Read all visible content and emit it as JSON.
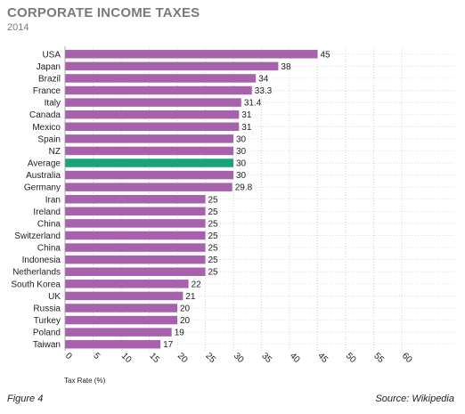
{
  "figure_label": "Figure 4",
  "source": "Source: Wikipedia",
  "chart_data": {
    "type": "bar",
    "orientation": "horizontal",
    "title": "CORPORATE INCOME TAXES",
    "subtitle": "2014",
    "xlabel": "Tax Rate (%)",
    "ylabel": "",
    "xlim": [
      0,
      60
    ],
    "xticks": [
      "0",
      "5",
      "10",
      "15",
      "20",
      "25",
      "30",
      "35",
      "40",
      "45",
      "50",
      "55",
      "60"
    ],
    "grid": true,
    "colors": {
      "default": "#a862ad",
      "highlight": "#1aa37a"
    },
    "highlight_category": "Average",
    "categories": [
      "USA",
      "Japan",
      "Brazil",
      "France",
      "Italy",
      "Canada",
      "Mexico",
      "Spain",
      "NZ",
      "Average",
      "Australia",
      "Germany",
      "Iran",
      "Ireland",
      "China",
      "Switzerland",
      "China",
      "Indonesia",
      "Netherlands",
      "South Korea",
      "UK",
      "Russia",
      "Turkey",
      "Poland",
      "Taiwan"
    ],
    "values": [
      45,
      38,
      34,
      33.3,
      31.4,
      31,
      31,
      30,
      30,
      30,
      30,
      29.8,
      25,
      25,
      25,
      25,
      25,
      25,
      25,
      22,
      21,
      20,
      20,
      19,
      17
    ],
    "value_labels": [
      "45",
      "38",
      "34",
      "33.3",
      "31.4",
      "31",
      "31",
      "30",
      "30",
      "30",
      "30",
      "29.8",
      "25",
      "25",
      "25",
      "25",
      "25",
      "25",
      "25",
      "22",
      "21",
      "20",
      "20",
      "19",
      "17"
    ]
  }
}
